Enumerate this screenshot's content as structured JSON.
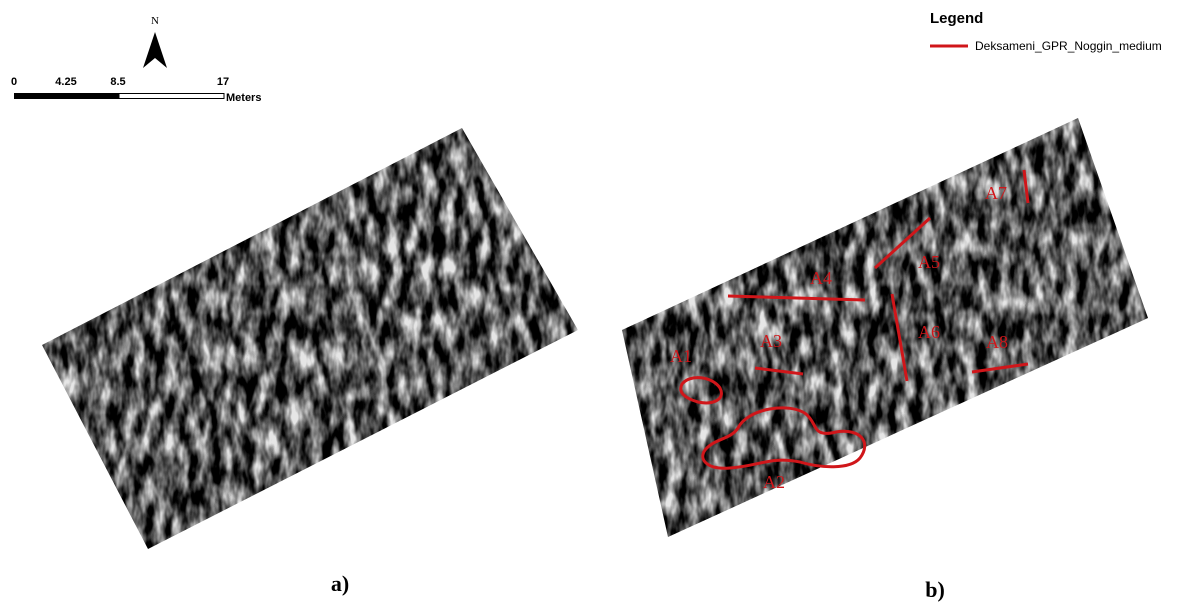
{
  "north_arrow": {
    "label": "N"
  },
  "scale_bar": {
    "labels": [
      "0",
      "4.25",
      "8.5",
      "17"
    ],
    "unit": "Meters"
  },
  "legend": {
    "title": "Legend",
    "entries": [
      {
        "name": "Deksameni_GPR_Noggin_medium",
        "color": "#d0161a"
      }
    ]
  },
  "panels": [
    {
      "label": "a)"
    },
    {
      "label": "b)",
      "anomalies": [
        "A1",
        "A2",
        "A3",
        "A4",
        "A5",
        "A6",
        "A7",
        "A8"
      ]
    }
  ]
}
